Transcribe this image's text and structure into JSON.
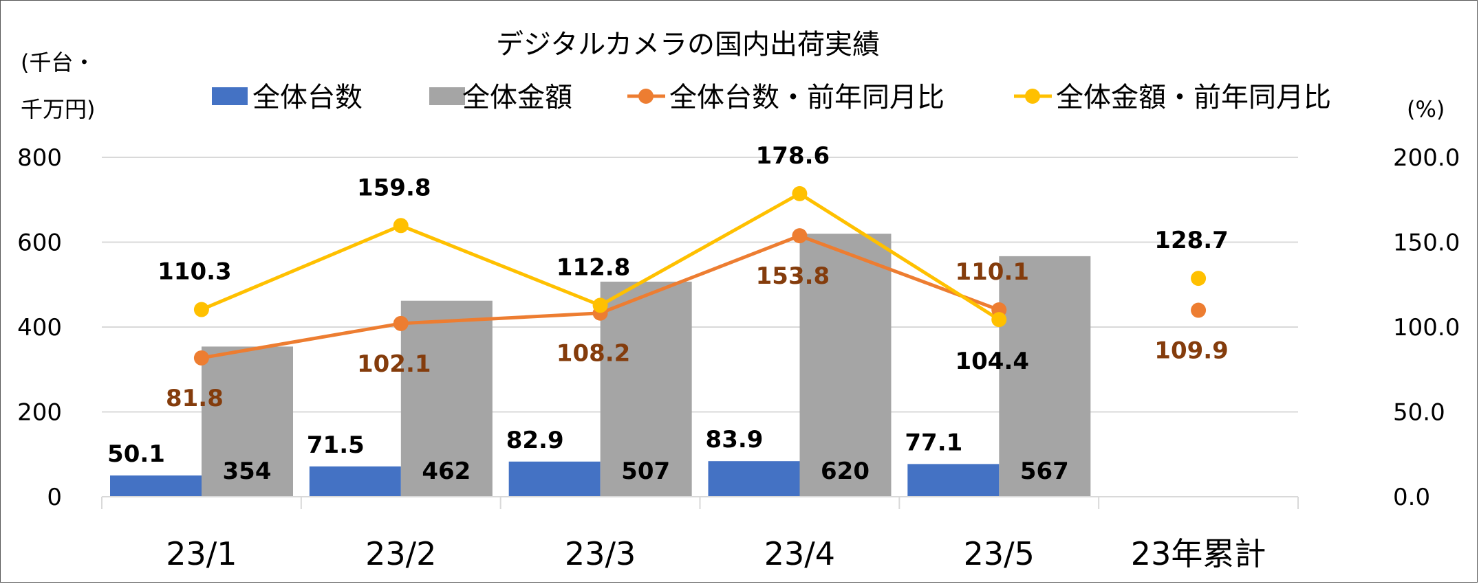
{
  "chart_data": {
    "type": "bar",
    "title": "デジタルカメラの国内出荷実績",
    "ylabel_left": [
      "(千台・",
      "千万円)"
    ],
    "ylabel_right": "(%)",
    "categories": [
      "23/1",
      "23/2",
      "23/3",
      "23/4",
      "23/5",
      "23年累計"
    ],
    "ylim_left": [
      0,
      800
    ],
    "yticks_left": [
      "0",
      "200",
      "400",
      "600",
      "800"
    ],
    "ylim_right": [
      0,
      200
    ],
    "yticks_right": [
      "0.0",
      "50.0",
      "100.0",
      "150.0",
      "200.0"
    ],
    "grid": true,
    "legend_position": "top",
    "series": [
      {
        "name": "全体台数",
        "kind": "bar",
        "axis": "left",
        "color": "#4472C4",
        "values": [
          50.1,
          71.5,
          82.9,
          83.9,
          77.1,
          null
        ],
        "labels": [
          "50.1",
          "71.5",
          "82.9",
          "83.9",
          "77.1",
          null
        ]
      },
      {
        "name": "全体金額",
        "kind": "bar",
        "axis": "left",
        "color": "#A5A5A5",
        "values": [
          354,
          462,
          507,
          620,
          567,
          null
        ],
        "labels": [
          "354",
          "462",
          "507",
          "620",
          "567",
          null
        ]
      },
      {
        "name": "全体台数・前年同月比",
        "kind": "line",
        "axis": "right",
        "color": "#ED7D31",
        "label_color": "#843C0C",
        "values": [
          81.8,
          102.1,
          108.2,
          153.8,
          110.1,
          109.9
        ],
        "labels": [
          "81.8",
          "102.1",
          "108.2",
          "153.8",
          "110.1",
          "109.9"
        ]
      },
      {
        "name": "全体金額・前年同月比",
        "kind": "line",
        "axis": "right",
        "color": "#FFC000",
        "label_color": "#000000",
        "values": [
          110.3,
          159.8,
          112.8,
          178.6,
          104.4,
          128.7
        ],
        "labels": [
          "110.3",
          "159.8",
          "112.8",
          "178.6",
          "104.4",
          "128.7"
        ]
      }
    ]
  }
}
